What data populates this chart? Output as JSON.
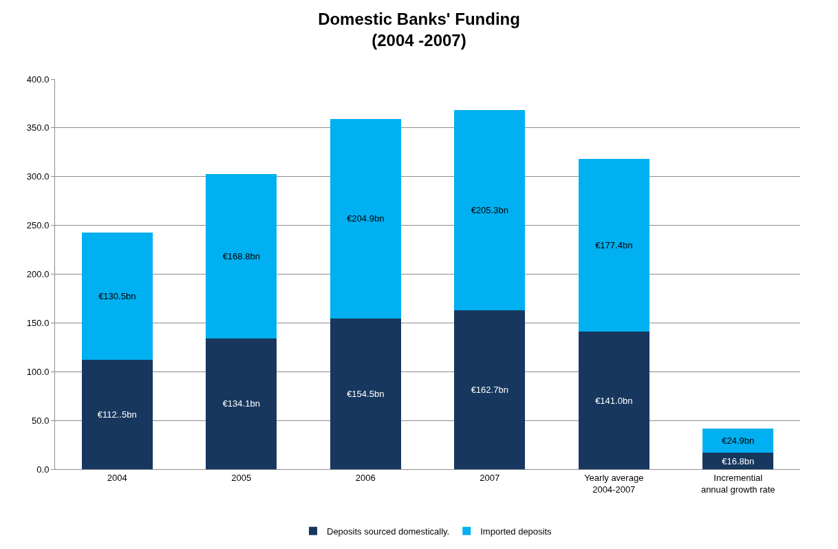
{
  "chart_data": {
    "type": "bar",
    "title": "Domestic Banks' Funding",
    "subtitle": "(2004 -2007)",
    "categories": [
      "2004",
      "2005",
      "2006",
      "2007",
      "Yearly average 2004-2007",
      "Incremential annual growth rate"
    ],
    "stacked": true,
    "series": [
      {
        "name": "Deposits sourced domestically.",
        "color": "#17375e",
        "values": [
          112.5,
          134.1,
          154.5,
          162.7,
          141.0,
          16.8
        ],
        "value_labels": [
          "€112..5bn",
          "€134.1bn",
          "€154.5bn",
          "€162.7bn",
          "€141.0bn",
          "€16.8bn"
        ]
      },
      {
        "name": "Imported deposits",
        "color": "#00b0f0",
        "values": [
          130.5,
          168.8,
          204.9,
          205.3,
          177.4,
          24.9
        ],
        "value_labels": [
          "€130.5bn",
          "€168.8bn",
          "€204.9bn",
          "€205.3bn",
          "€177.4bn",
          "€24.9bn"
        ]
      }
    ],
    "ylim": [
      0,
      400
    ],
    "yticks": [
      {
        "value": 0,
        "label": "0.0"
      },
      {
        "value": 50,
        "label": "50.0"
      },
      {
        "value": 100,
        "label": "100.0"
      },
      {
        "value": 150,
        "label": "150.0"
      },
      {
        "value": 200,
        "label": "200.0"
      },
      {
        "value": 250,
        "label": "250.0"
      },
      {
        "value": 300,
        "label": "300.0"
      },
      {
        "value": 350,
        "label": "350.0"
      },
      {
        "value": 400,
        "label": "400.0"
      }
    ],
    "grid": "y",
    "legend": "bottom"
  }
}
